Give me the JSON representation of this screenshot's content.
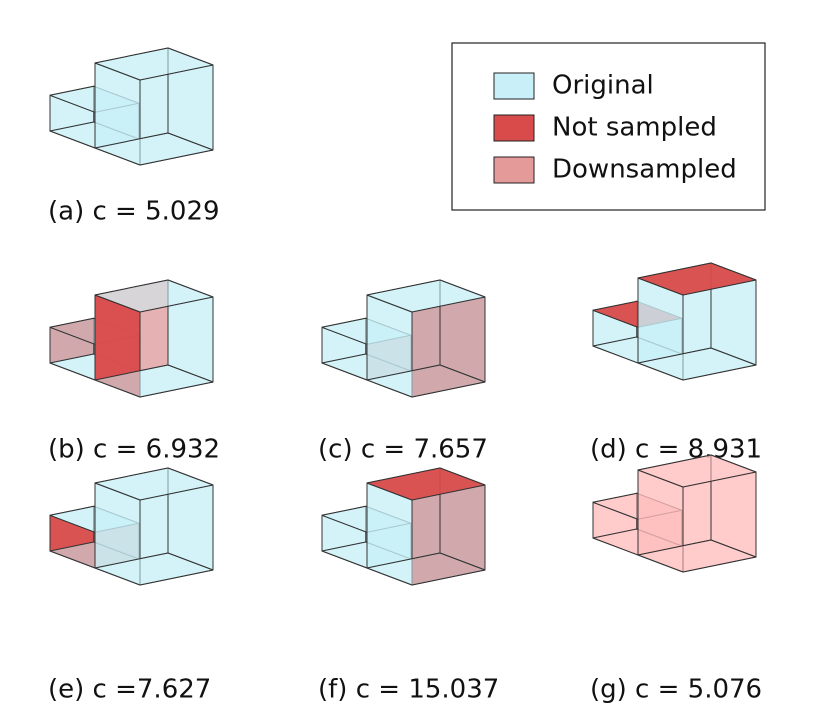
{
  "legend": {
    "items": [
      {
        "label": "Original",
        "color": "#c9f0f8"
      },
      {
        "label": "Not sampled",
        "color": "#d94a4a"
      },
      {
        "label": "Downsampled",
        "color": "#e59a9a"
      }
    ]
  },
  "panels": [
    {
      "caption": "(a) c = 5.029"
    },
    {
      "caption": "(b) c = 6.932"
    },
    {
      "caption": "(c) c = 7.657"
    },
    {
      "caption": "(d) c = 8.931"
    },
    {
      "caption": "(e) c =7.627"
    },
    {
      "caption": "(f) c = 15.037"
    },
    {
      "caption": "(g) c = 5.076"
    }
  ]
}
